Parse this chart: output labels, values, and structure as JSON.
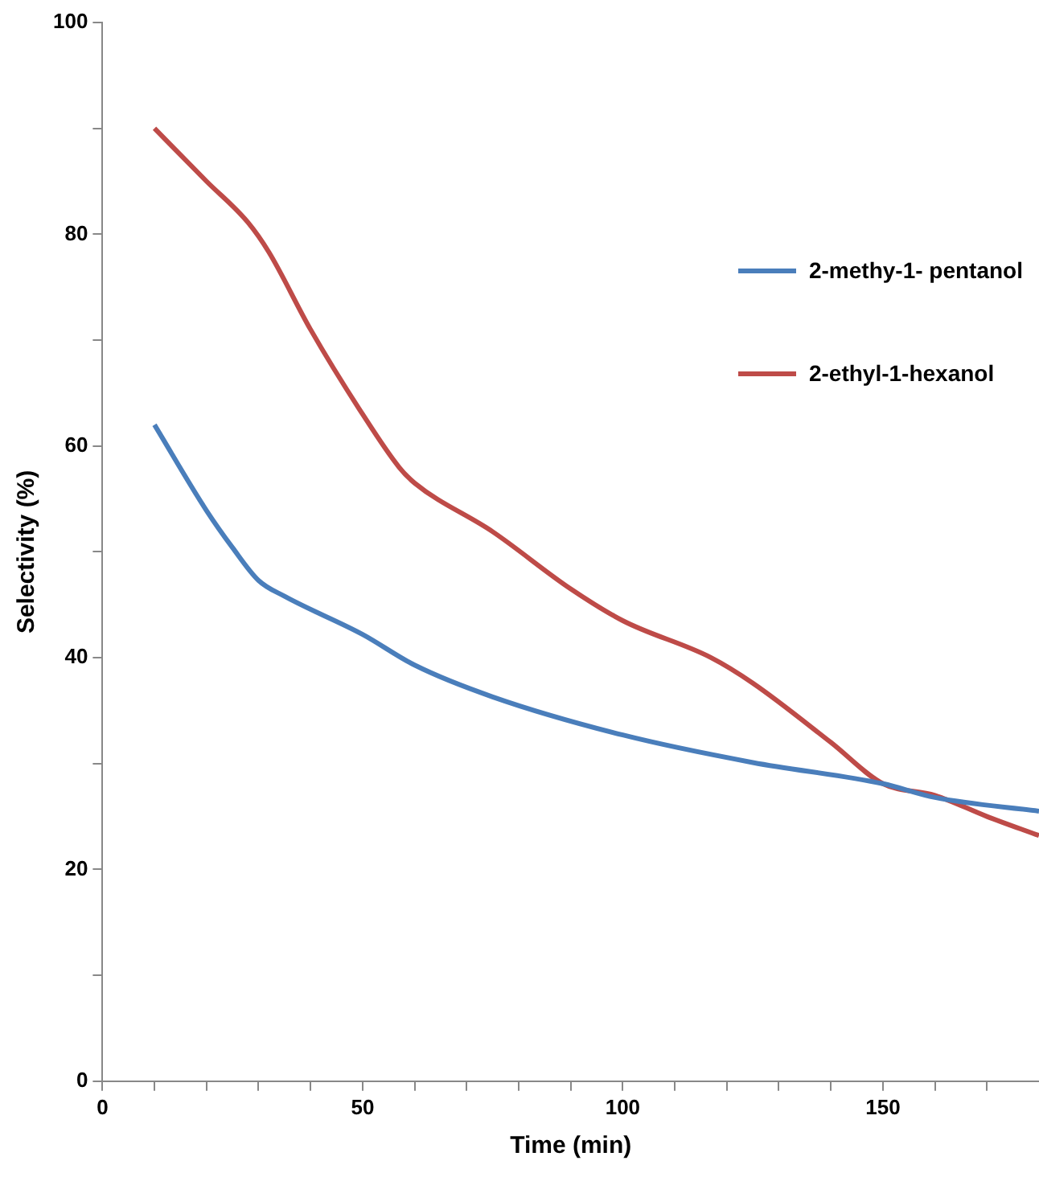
{
  "chart_data": {
    "type": "line",
    "xlabel": "Time (min)",
    "ylabel": "Selectivity (%)",
    "xlim": [
      0,
      180
    ],
    "ylim": [
      0,
      100
    ],
    "xticks": [
      0,
      {
        "value": 10,
        "label": null
      },
      {
        "value": 20,
        "label": null
      },
      {
        "value": 30,
        "label": null
      },
      {
        "value": 40,
        "label": null
      },
      50,
      {
        "value": 60,
        "label": null
      },
      {
        "value": 70,
        "label": null
      },
      {
        "value": 80,
        "label": null
      },
      {
        "value": 90,
        "label": null
      },
      100,
      {
        "value": 110,
        "label": null
      },
      {
        "value": 120,
        "label": null
      },
      {
        "value": 130,
        "label": null
      },
      {
        "value": 140,
        "label": null
      },
      150,
      {
        "value": 160,
        "label": null
      },
      {
        "value": 170,
        "label": null
      }
    ],
    "yticks": [
      0,
      {
        "value": 10,
        "label": null
      },
      20,
      {
        "value": 30,
        "label": null
      },
      40,
      {
        "value": 50,
        "label": null
      },
      60,
      {
        "value": 70,
        "label": null
      },
      80,
      {
        "value": 90,
        "label": null
      },
      100
    ],
    "grid": false,
    "legend": "top right",
    "marker": "none",
    "line_style": "solid",
    "series": [
      {
        "name": "2-methy-1- pentanol",
        "color": "#4a7ebb",
        "x": [
          10,
          20,
          25,
          30,
          35,
          50,
          60,
          75,
          100,
          125,
          150,
          160,
          180
        ],
        "values": [
          62,
          53.9,
          50.4,
          47.3,
          45.8,
          42.2,
          39.3,
          36.3,
          32.7,
          30.1,
          28.1,
          26.8,
          25.5
        ]
      },
      {
        "name": "2-ethyl-1-hexanol",
        "color": "#be4b48",
        "x": [
          10,
          20,
          28,
          32,
          40,
          50,
          57,
          60,
          75,
          90,
          100,
          117,
          125,
          140,
          150,
          160,
          170,
          180
        ],
        "values": [
          90,
          85,
          81.1,
          78.3,
          71,
          63,
          58,
          56.5,
          51.9,
          46.5,
          43.5,
          40,
          37.6,
          32,
          28.1,
          27,
          25,
          23.2
        ]
      }
    ]
  }
}
